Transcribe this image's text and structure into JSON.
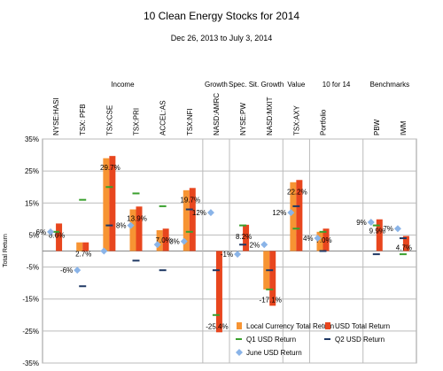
{
  "chart_data": {
    "type": "bar",
    "title": "10 Clean Energy Stocks for 2014",
    "subtitle": "Dec 26, 2013 to July 3, 2014",
    "y_label": "Total Return",
    "groups": [
      "Income",
      "Growth",
      "Spec. Sit. Growth",
      "Value",
      "10 for 14",
      "Benchmarks"
    ],
    "categories": [
      "NYSE:HASI",
      "TSX: PFB",
      "TSX:CSE",
      "TSX:PRI",
      "ACCEL:AS",
      "TSX:NFI",
      "NASD:AMRC",
      "NYSE:PW",
      "NASD:MXIT",
      "TSX:AXY",
      "Portfolio",
      null,
      "PBW",
      "IWM"
    ],
    "ylim": [
      -35,
      35
    ],
    "yticks": [
      {
        "value": -35,
        "label": "-35%"
      },
      {
        "value": -25,
        "label": "-25%"
      },
      {
        "value": -15,
        "label": "-15%"
      },
      {
        "value": -5,
        "label": "-5%"
      },
      {
        "value": 5,
        "label": "5%"
      },
      {
        "value": 15,
        "label": "15%"
      },
      {
        "value": 25,
        "label": "25%"
      },
      {
        "value": 35,
        "label": "35%"
      }
    ],
    "grid": true,
    "series": [
      {
        "name": "Local Currency Total Return",
        "color": "#f79433",
        "kind": "bar",
        "values": [
          null,
          2.7,
          29,
          13,
          6.5,
          19,
          null,
          null,
          -12,
          21.5,
          6,
          null,
          null,
          null
        ]
      },
      {
        "name": "USD Total Return",
        "color": "#e8461e",
        "kind": "bar",
        "values": [
          8.6,
          2.7,
          29.7,
          13.9,
          7.0,
          19.7,
          -25.4,
          8.2,
          -17.1,
          22.2,
          7.0,
          null,
          9.9,
          4.7
        ],
        "value_labels": [
          "8.6%",
          "2.7%",
          "29.7%",
          "13.9%",
          "7.0%",
          "19.7%",
          "-25.4%",
          "8.2%",
          "-17.1%",
          "22.2%",
          "7.0%",
          null,
          "9.9%",
          "4.7%"
        ]
      },
      {
        "name": "Q1 USD Return",
        "color": "#3aa02e",
        "kind": "dash",
        "values": [
          6,
          16,
          20,
          18,
          14,
          6,
          -20,
          8,
          -12,
          7,
          6,
          null,
          8,
          -1
        ]
      },
      {
        "name": "Q2 USD Return",
        "color": "#1f3864",
        "kind": "dash",
        "values": [
          null,
          -11,
          8,
          -3,
          -6,
          13,
          -6,
          2,
          -6,
          14,
          0,
          null,
          -1,
          4
        ]
      },
      {
        "name": "June USD Return",
        "color": "#8ab4e8",
        "kind": "diamond",
        "values": [
          6,
          -6,
          0,
          8,
          2,
          3,
          12,
          -1,
          2,
          12,
          4,
          null,
          9,
          7
        ],
        "value_labels": [
          "6%",
          "-6%",
          null,
          "8%",
          null,
          "3%",
          "12%",
          "-1%",
          "2%",
          "12%",
          "4%",
          null,
          "9%",
          "7%"
        ]
      }
    ]
  }
}
